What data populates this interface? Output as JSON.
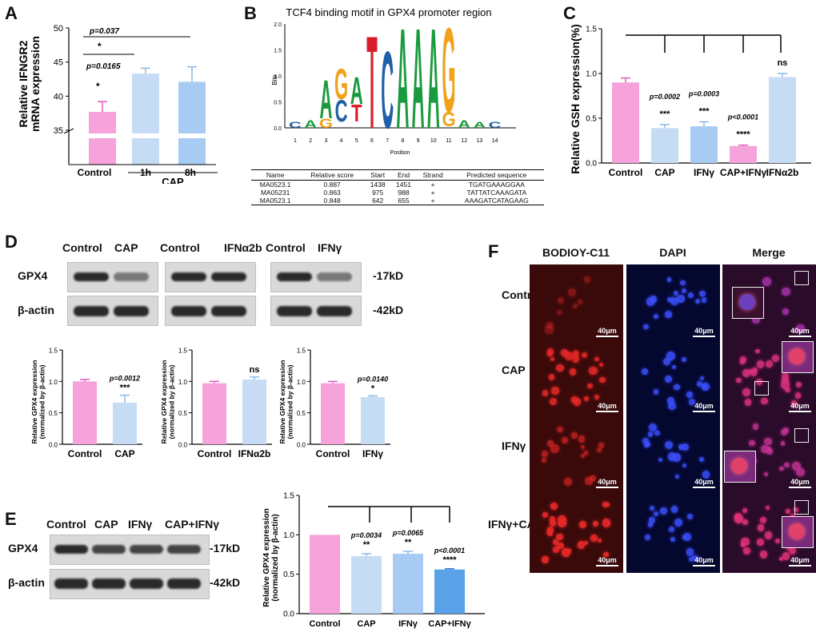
{
  "panels": {
    "A": {
      "letter": "A",
      "ylabel_line1": "Relative IFNGR2",
      "ylabel_line2": "mRNA expression",
      "yticks": [
        "50",
        "45",
        "40",
        "35"
      ],
      "group_label": "CAP",
      "p_top": "p=0.037",
      "p_top_star": "*",
      "p_ctrl": "p=0.0165",
      "p_ctrl_star": "*"
    },
    "B": {
      "letter": "B",
      "title": "TCF4 binding motif in GPX4 promoter region",
      "ylabel": "Bits",
      "xlabel": "Position",
      "yticks": [
        "2.0",
        "1.5",
        "1.0",
        "0.5",
        "0.0"
      ],
      "positions": [
        "1",
        "2",
        "3",
        "4",
        "5",
        "6",
        "7",
        "8",
        "9",
        "10",
        "11",
        "12",
        "13",
        "14"
      ],
      "table_headers": [
        "Name",
        "Relative score",
        "Start",
        "End",
        "Strand",
        "Predicted sequence"
      ],
      "table_rows": [
        [
          "MA0523.1",
          "0.887",
          "1438",
          "1451",
          "+",
          "TGATGAAAGGAA"
        ],
        [
          "MA05231",
          "0.863",
          "975",
          "988",
          "+",
          "TATTATCAAAGATA"
        ],
        [
          "MA0523.1",
          "0.848",
          "642",
          "655",
          "+",
          "AAAGATCATAGAAG"
        ]
      ]
    },
    "C": {
      "letter": "C",
      "ylabel": "Relative GSH expression(%)",
      "yticks": [
        "1.5",
        "1.0",
        "0.5",
        "0.0"
      ]
    },
    "D": {
      "letter": "D",
      "row_gpx4": "GPX4",
      "row_actin": "β-actin",
      "kd_17": "-17kD",
      "kd_42": "-42kD",
      "blot_headers": [
        [
          "Control",
          "CAP"
        ],
        [
          "Control",
          "IFNα2b"
        ],
        [
          "Control",
          "IFNγ"
        ]
      ],
      "ylabel_line1": "Relative GPX4 expression",
      "ylabel_line2": "(normalized by β-actin)",
      "yticks": [
        "1.5",
        "1.0",
        "0.5",
        "0.0"
      ]
    },
    "E": {
      "letter": "E",
      "lanes": [
        "Control",
        "CAP",
        "IFNγ",
        "CAP+IFNγ"
      ],
      "row_gpx4": "GPX4",
      "row_actin": "β-actin",
      "kd_17": "-17kD",
      "kd_42": "-42kD",
      "ylabel_line1": "Relative GPX4 expression",
      "ylabel_line2": "(normalized by β-actin)",
      "yticks": [
        "1.5",
        "1.0",
        "0.5",
        "0.0"
      ]
    },
    "F": {
      "letter": "F",
      "col_headers": [
        "BODIOY-C11",
        "DAPI",
        "Merge"
      ],
      "row_labels": [
        "Control",
        "CAP",
        "IFNγ",
        "IFNγ+CAP"
      ],
      "scale": "40μm"
    }
  },
  "chart_data": [
    {
      "panel": "A",
      "type": "bar",
      "categories": [
        "Control",
        "1h",
        "8h"
      ],
      "values": [
        37.7,
        43.3,
        42.1
      ],
      "errors": [
        1.5,
        0.8,
        2.2
      ],
      "ylim": [
        30,
        50
      ],
      "axis_break": 35,
      "annotations": [
        {
          "text": "p=0.0165",
          "star": "*"
        },
        {
          "text": "p=0.037",
          "star": "*"
        }
      ]
    },
    {
      "panel": "C",
      "type": "bar",
      "categories": [
        "Control",
        "CAP",
        "IFNγ",
        "CAP+IFNγ",
        "IFNα2b"
      ],
      "values": [
        0.9,
        0.39,
        0.41,
        0.19,
        0.96
      ],
      "errors": [
        0.05,
        0.04,
        0.05,
        0.01,
        0.04
      ],
      "ylim": [
        0,
        1.5
      ],
      "pvalues": [
        "",
        "p=0.0002",
        "p=0.0003",
        "p<0.0001",
        ""
      ],
      "stars": [
        "",
        "***",
        "***",
        "****",
        "ns"
      ]
    },
    {
      "panel": "D1",
      "type": "bar",
      "categories": [
        "Control",
        "CAP"
      ],
      "values": [
        1.0,
        0.66
      ],
      "errors": [
        0.03,
        0.12
      ],
      "ylim": [
        0,
        1.5
      ],
      "pvalues": [
        "",
        "p=0.0012"
      ],
      "stars": [
        "",
        "***"
      ]
    },
    {
      "panel": "D2",
      "type": "bar",
      "categories": [
        "Control",
        "IFNα2b"
      ],
      "values": [
        0.97,
        1.03
      ],
      "errors": [
        0.03,
        0.04
      ],
      "ylim": [
        0,
        1.5
      ],
      "pvalues": [
        "",
        ""
      ],
      "stars": [
        "",
        "ns"
      ]
    },
    {
      "panel": "D3",
      "type": "bar",
      "categories": [
        "Control",
        "IFNγ"
      ],
      "values": [
        0.97,
        0.75
      ],
      "errors": [
        0.03,
        0.02
      ],
      "ylim": [
        0,
        1.5
      ],
      "pvalues": [
        "",
        "p=0.0140"
      ],
      "stars": [
        "",
        "*"
      ]
    },
    {
      "panel": "E",
      "type": "bar",
      "categories": [
        "Control",
        "CAP",
        "IFNγ",
        "CAP+IFNγ"
      ],
      "values": [
        1.0,
        0.73,
        0.76,
        0.56
      ],
      "errors": [
        0,
        0.03,
        0.03,
        0.01
      ],
      "ylim": [
        0,
        1.5
      ],
      "pvalues": [
        "",
        "p=0.0034",
        "p=0.0065",
        "p<0.0001"
      ],
      "stars": [
        "",
        "**",
        "**",
        "****"
      ]
    }
  ],
  "colors": {
    "pink": "#f5a3da",
    "lightblue": "#c6dcf5",
    "midblue": "#a7cbf2",
    "blue": "#5aa2e8",
    "errpink": "#e05bbd",
    "errblue": "#8db8e6"
  }
}
